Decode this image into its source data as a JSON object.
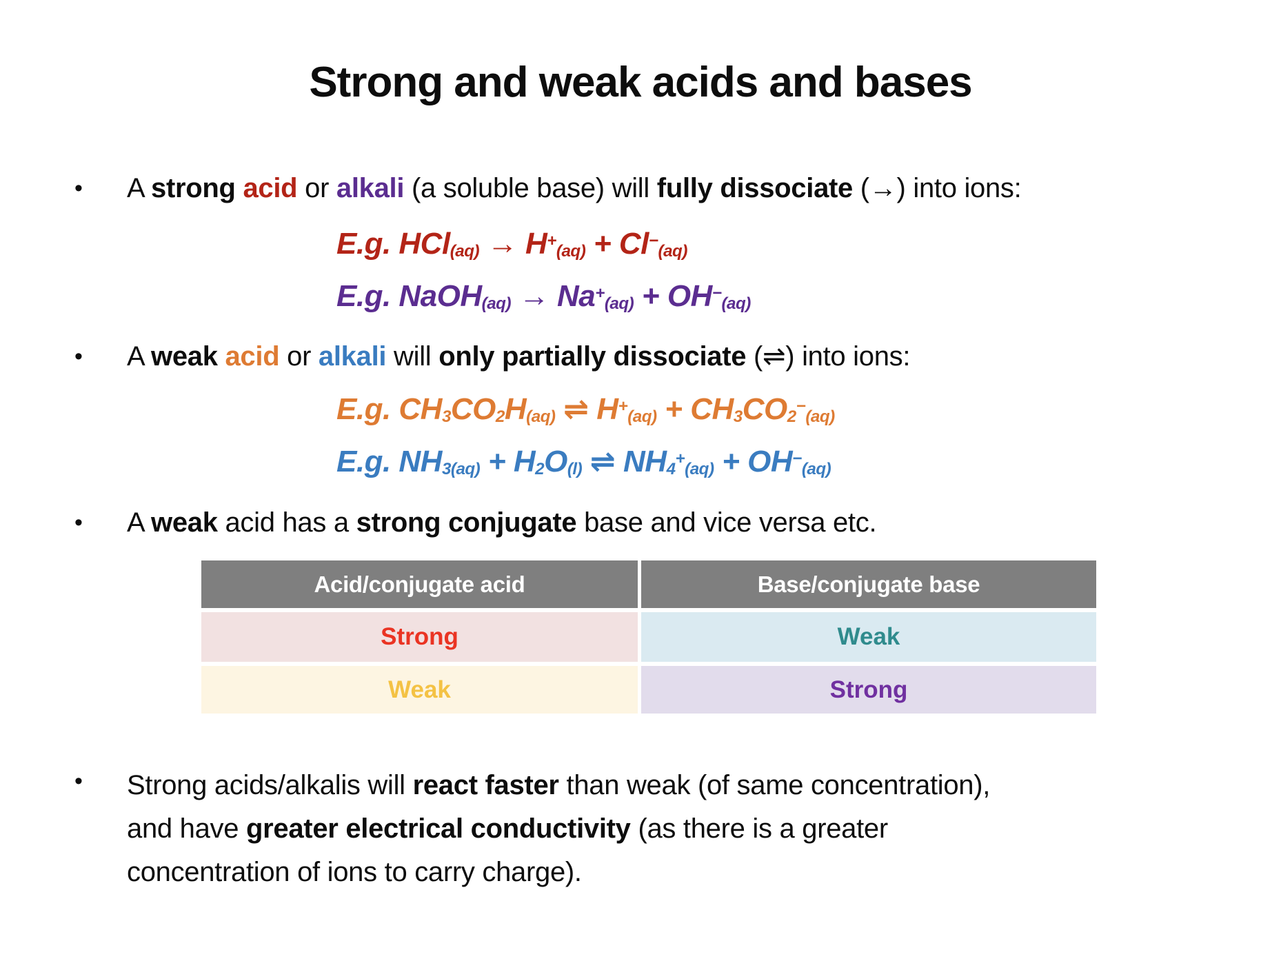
{
  "title": "Strong and weak acids and bases",
  "bullet_char": "•",
  "colors": {
    "body_text": "#0d0d0d",
    "strong_acid_red": "#b32417",
    "strong_alkali_purple": "#5b2d90",
    "weak_acid_orange": "#de7b33",
    "weak_alkali_blue": "#3a7cc0",
    "table_header_bg": "#7f7f7f",
    "table_header_text": "#ffffff",
    "cell_strong_acid_bg": "#f2e1e1",
    "cell_strong_acid_text": "#ea3423",
    "cell_weak_base_bg": "#daeaf1",
    "cell_weak_base_text": "#2f8b8d",
    "cell_weak_acid_bg": "#fdf5e2",
    "cell_weak_acid_text": "#f4c244",
    "cell_strong_base_bg": "#e2dcec",
    "cell_strong_base_text": "#7030a0"
  },
  "bullets": [
    {
      "segments": [
        {
          "t": "A "
        },
        {
          "t": "strong",
          "b": true
        },
        {
          "t": " "
        },
        {
          "t": "acid",
          "b": true,
          "c": "#b32417"
        },
        {
          "t": " or "
        },
        {
          "t": "alkali",
          "b": true,
          "c": "#5b2d90"
        },
        {
          "t": " (a soluble base) will "
        },
        {
          "t": "fully dissociate",
          "b": true
        },
        {
          "t": " (→) into ions:"
        }
      ]
    },
    {
      "segments": [
        {
          "t": "A "
        },
        {
          "t": "weak",
          "b": true
        },
        {
          "t": " "
        },
        {
          "t": "acid",
          "b": true,
          "c": "#de7b33"
        },
        {
          "t": " or "
        },
        {
          "t": "alkali",
          "b": true,
          "c": "#3a7cc0"
        },
        {
          "t": " will "
        },
        {
          "t": "only partially dissociate",
          "b": true
        },
        {
          "t": " (⇌) into ions:"
        }
      ]
    },
    {
      "segments": [
        {
          "t": "A "
        },
        {
          "t": "weak",
          "b": true
        },
        {
          "t": " acid has a "
        },
        {
          "t": "strong conjugate",
          "b": true
        },
        {
          "t": " base and vice versa etc."
        }
      ]
    },
    {
      "segments": [
        {
          "t": "Strong acids/alkalis will "
        },
        {
          "t": "react faster",
          "b": true
        },
        {
          "t": " than weak (of same concentration),"
        },
        {
          "br": true
        },
        {
          "t": "and have "
        },
        {
          "t": "greater electrical conductivity",
          "b": true
        },
        {
          "t": " (as there is a greater"
        },
        {
          "br": true
        },
        {
          "t": "concentration of ions to carry charge)."
        }
      ]
    }
  ],
  "equations": [
    {
      "color": "#b32417",
      "segments": [
        {
          "t": "E.g. HCl"
        },
        {
          "t": "(aq)",
          "sub": true
        },
        {
          "t": " → H"
        },
        {
          "t": "+",
          "sup": true
        },
        {
          "t": "(aq)",
          "sub": true
        },
        {
          "t": " + Cl"
        },
        {
          "t": "−",
          "sup": true
        },
        {
          "t": "(aq)",
          "sub": true
        }
      ]
    },
    {
      "color": "#5b2d90",
      "segments": [
        {
          "t": "E.g. NaOH"
        },
        {
          "t": "(aq)",
          "sub": true
        },
        {
          "t": " → Na"
        },
        {
          "t": "+",
          "sup": true
        },
        {
          "t": "(aq)",
          "sub": true
        },
        {
          "t": " + OH"
        },
        {
          "t": "−",
          "sup": true
        },
        {
          "t": "(aq)",
          "sub": true
        }
      ]
    },
    {
      "color": "#de7b33",
      "segments": [
        {
          "t": "E.g. CH"
        },
        {
          "t": "3",
          "sub": true
        },
        {
          "t": "CO"
        },
        {
          "t": "2",
          "sub": true
        },
        {
          "t": "H"
        },
        {
          "t": "(aq)",
          "sub": true
        },
        {
          "t": " ⇌ H"
        },
        {
          "t": "+",
          "sup": true
        },
        {
          "t": "(aq)",
          "sub": true
        },
        {
          "t": " + CH"
        },
        {
          "t": "3",
          "sub": true
        },
        {
          "t": "CO"
        },
        {
          "t": "2",
          "sub": true
        },
        {
          "t": "−",
          "sup": true
        },
        {
          "t": "(aq)",
          "sub": true
        }
      ]
    },
    {
      "color": "#3a7cc0",
      "segments": [
        {
          "t": "E.g. NH"
        },
        {
          "t": "3(aq)",
          "sub": true
        },
        {
          "t": " + H"
        },
        {
          "t": "2",
          "sub": true
        },
        {
          "t": "O"
        },
        {
          "t": "(l)",
          "sub": true
        },
        {
          "t": " ⇌ NH"
        },
        {
          "t": "4",
          "sub": true
        },
        {
          "t": "+",
          "sup": true
        },
        {
          "t": "(aq)",
          "sub": true
        },
        {
          "t": " + OH"
        },
        {
          "t": "−",
          "sup": true
        },
        {
          "t": "(aq)",
          "sub": true
        }
      ]
    }
  ],
  "table": {
    "headers": [
      "Acid/conjugate acid",
      "Base/conjugate base"
    ],
    "rows": [
      [
        {
          "text": "Strong",
          "color": "#ea3423",
          "bg": "#f2e1e1"
        },
        {
          "text": "Weak",
          "color": "#2f8b8d",
          "bg": "#daeaf1"
        }
      ],
      [
        {
          "text": "Weak",
          "color": "#f4c244",
          "bg": "#fdf5e2"
        },
        {
          "text": "Strong",
          "color": "#7030a0",
          "bg": "#e2dcec"
        }
      ]
    ]
  }
}
